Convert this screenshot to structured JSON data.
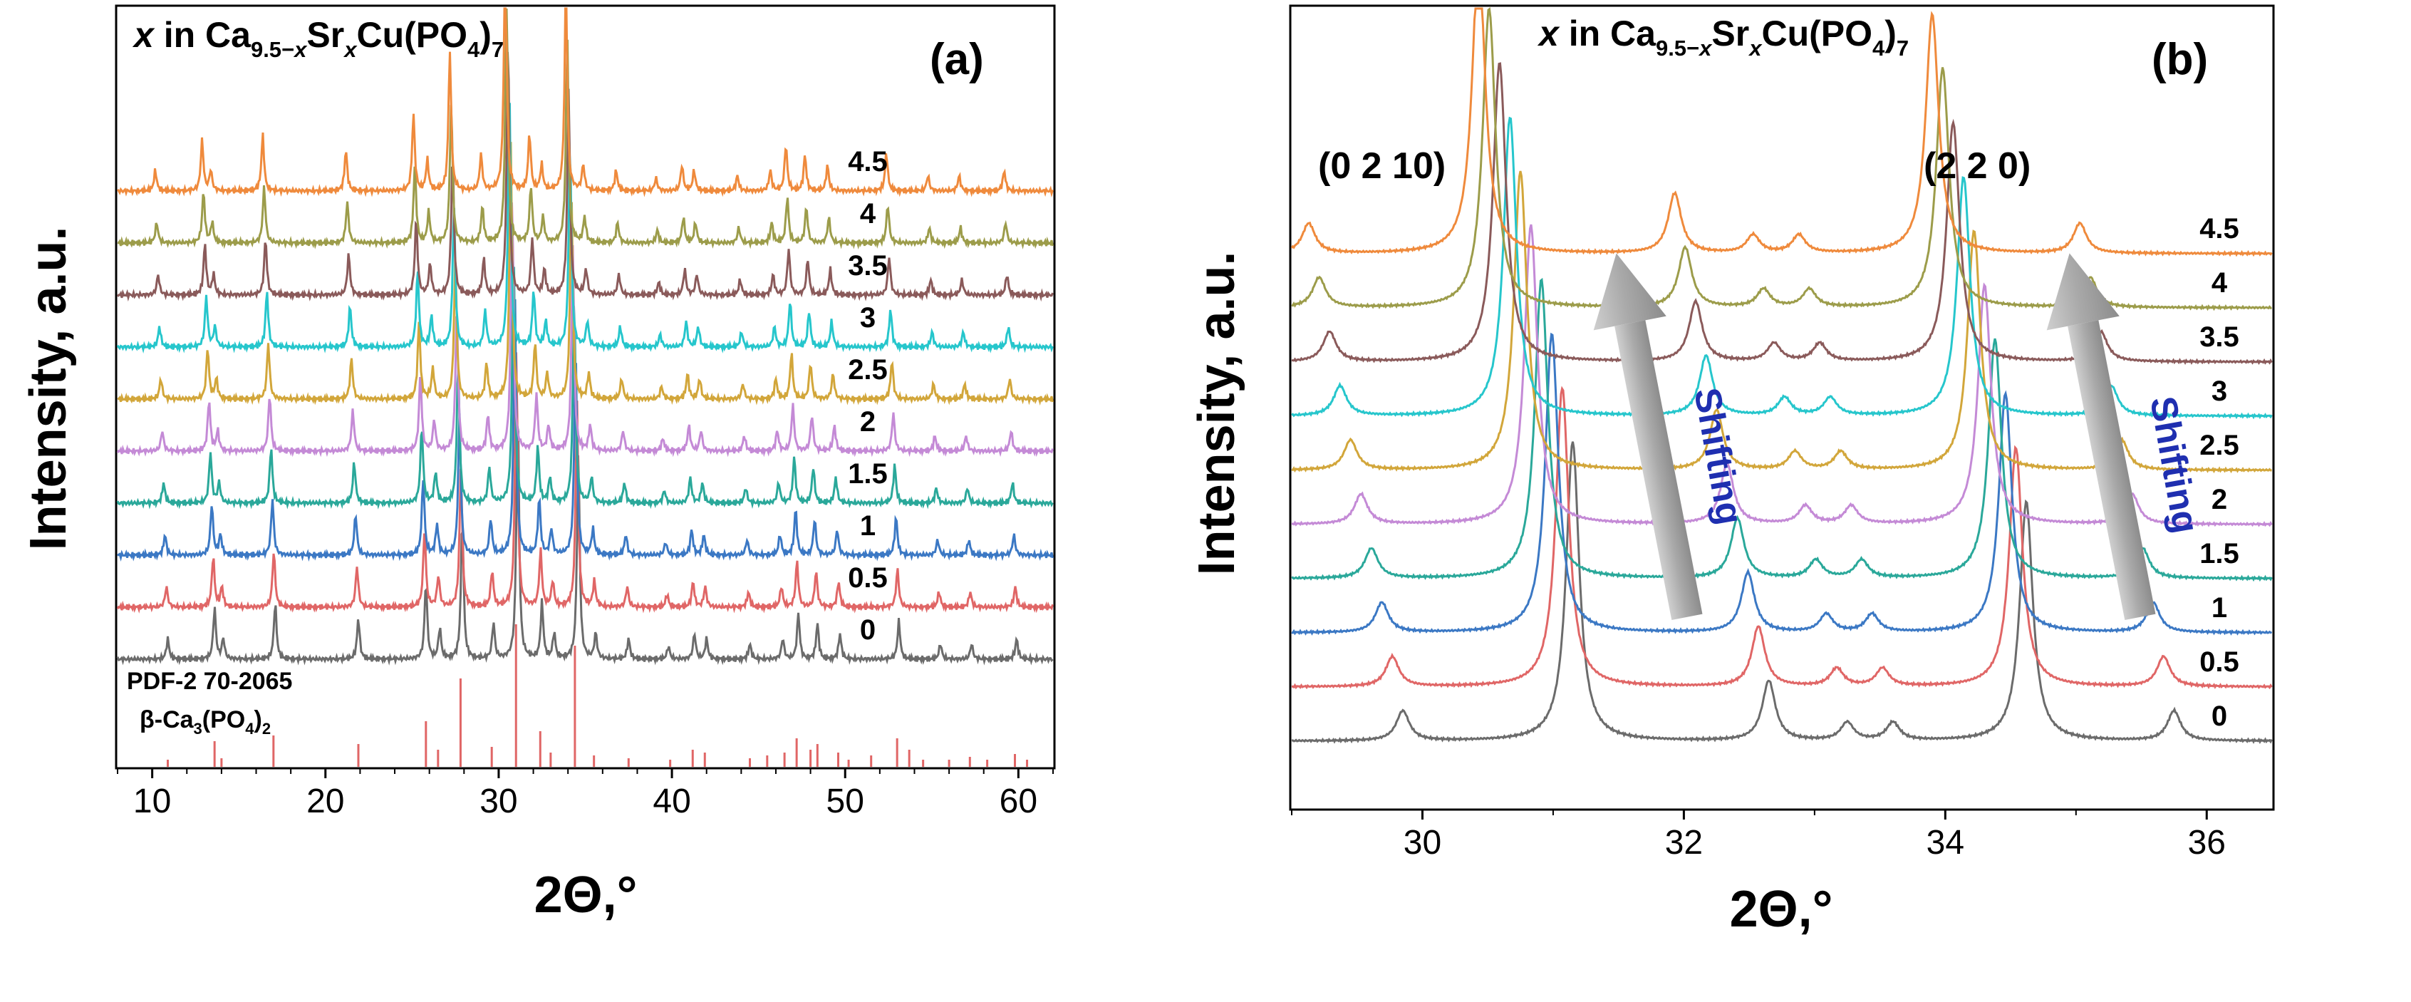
{
  "chart_data": [
    {
      "type": "line",
      "panel_label": "(a)",
      "title_parts": {
        "x": "x",
        "in": " in Ca",
        "sub1": "9.5−",
        "sub1x": "x",
        "sr": "Sr",
        "sub2x": "x",
        "cu": "Cu(PO",
        "sub3": "4",
        "close": ")",
        "sub4": "7"
      },
      "ylabel": "Intensity, a.u.",
      "xlabel": "2Θ,°",
      "xlim": [
        8,
        62
      ],
      "xticks": [
        "10",
        "20",
        "30",
        "40",
        "50",
        "60"
      ],
      "xtick_values": [
        10,
        20,
        30,
        40,
        50,
        60
      ],
      "series_labels": [
        "0",
        "0.5",
        "1",
        "1.5",
        "2",
        "2.5",
        "3",
        "3.5",
        "4",
        "4.5"
      ],
      "series_colors": [
        "#6b6b6b",
        "#e06666",
        "#3b78c4",
        "#2aa89a",
        "#c48ad6",
        "#d2a63a",
        "#26c6cc",
        "#8a5a5a",
        "#9c9c4a",
        "#ef8a3c"
      ],
      "peaks_x0": [
        10.9,
        13.6,
        14.1,
        17.1,
        21.9,
        25.8,
        26.6,
        27.9,
        29.7,
        31.1,
        32.5,
        33.2,
        34.6,
        35.6,
        37.5,
        39.8,
        41.3,
        42.0,
        44.5,
        46.4,
        47.3,
        48.4,
        49.7,
        53.1,
        55.5,
        57.3,
        59.9
      ],
      "peaks_h0": [
        0.08,
        0.2,
        0.08,
        0.22,
        0.16,
        0.3,
        0.12,
        0.55,
        0.14,
        1.0,
        0.22,
        0.1,
        0.8,
        0.1,
        0.08,
        0.05,
        0.1,
        0.08,
        0.06,
        0.08,
        0.18,
        0.14,
        0.1,
        0.15,
        0.06,
        0.06,
        0.08
      ],
      "shift_per_x": -0.16,
      "reference": {
        "label_line1": "PDF-2 70-2065",
        "label_line2_parts": {
          "beta": "β-Ca",
          "sub1": "3",
          "po": "(PO",
          "sub2": "4",
          "close": ")",
          "sub3": "2"
        },
        "x": [
          10.9,
          13.6,
          14.0,
          17.0,
          21.9,
          25.8,
          26.5,
          27.8,
          29.6,
          31.0,
          32.4,
          33.0,
          34.4,
          35.5,
          37.5,
          39.9,
          41.2,
          41.9,
          44.5,
          45.5,
          46.5,
          47.2,
          48.0,
          48.4,
          49.6,
          50.2,
          51.5,
          53.0,
          53.7,
          54.5,
          56.0,
          57.2,
          58.2,
          59.8,
          60.5
        ],
        "h": [
          0.05,
          0.18,
          0.06,
          0.22,
          0.16,
          0.32,
          0.12,
          0.62,
          0.14,
          1.0,
          0.25,
          0.1,
          0.85,
          0.08,
          0.06,
          0.05,
          0.12,
          0.1,
          0.06,
          0.08,
          0.1,
          0.2,
          0.12,
          0.16,
          0.1,
          0.05,
          0.08,
          0.2,
          0.12,
          0.05,
          0.05,
          0.07,
          0.05,
          0.09,
          0.05
        ]
      }
    },
    {
      "type": "line",
      "panel_label": "(b)",
      "title_parts": {
        "x": "x",
        "in": " in Ca",
        "sub1": "9.5−",
        "sub1x": "x",
        "sr": "Sr",
        "sub2x": "x",
        "cu": "Cu(PO",
        "sub3": "4",
        "close": ")",
        "sub4": "7"
      },
      "ylabel": "Intensity, a.u.",
      "xlabel": "2Θ,°",
      "xlim": [
        29,
        36.5
      ],
      "xticks": [
        "30",
        "32",
        "34",
        "36"
      ],
      "xtick_values": [
        30,
        32,
        34,
        36
      ],
      "series_labels": [
        "0",
        "0.5",
        "1",
        "1.5",
        "2",
        "2.5",
        "3",
        "3.5",
        "4",
        "4.5"
      ],
      "series_colors": [
        "#6b6b6b",
        "#e06666",
        "#3b78c4",
        "#2aa89a",
        "#c48ad6",
        "#d2a63a",
        "#26c6cc",
        "#8a5a5a",
        "#9c9c4a",
        "#ef8a3c"
      ],
      "peaks_x0": [
        29.85,
        31.15,
        32.65,
        33.25,
        33.6,
        34.62,
        35.75
      ],
      "peaks_h0": [
        0.1,
        1.0,
        0.2,
        0.06,
        0.06,
        0.8,
        0.1
      ],
      "shift_per_x": -0.16,
      "annotations": [
        {
          "text": "(0 2 10)"
        },
        {
          "text": "(2 2 0)"
        },
        {
          "text": "Shifting"
        },
        {
          "text": "Shifting"
        }
      ]
    }
  ]
}
